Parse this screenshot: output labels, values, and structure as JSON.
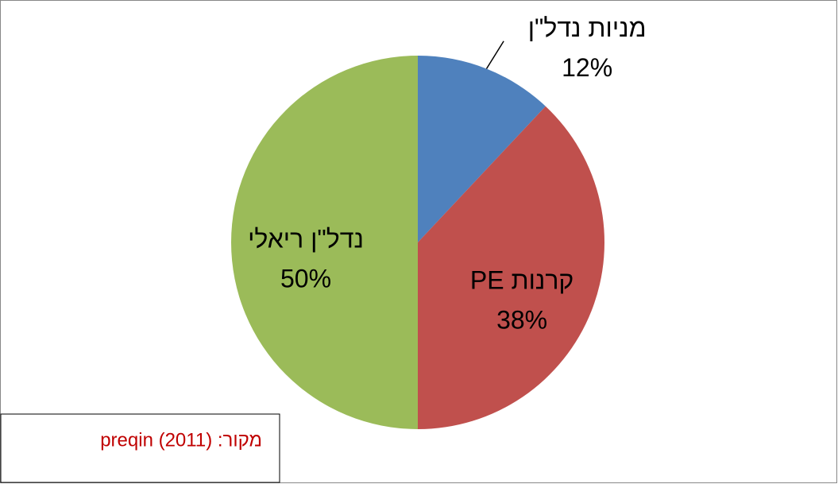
{
  "chart_data": {
    "type": "pie",
    "categories": [
      "מניות נדל\"ן",
      "קרנות PE",
      "נדל\"ן ריאלי"
    ],
    "values": [
      12,
      38,
      50
    ],
    "value_labels": [
      "12%",
      "38%",
      "50%"
    ],
    "colors": [
      "#4f81bd",
      "#c0504d",
      "#9bbb59"
    ],
    "source": "מקור: preqin (2011)"
  }
}
